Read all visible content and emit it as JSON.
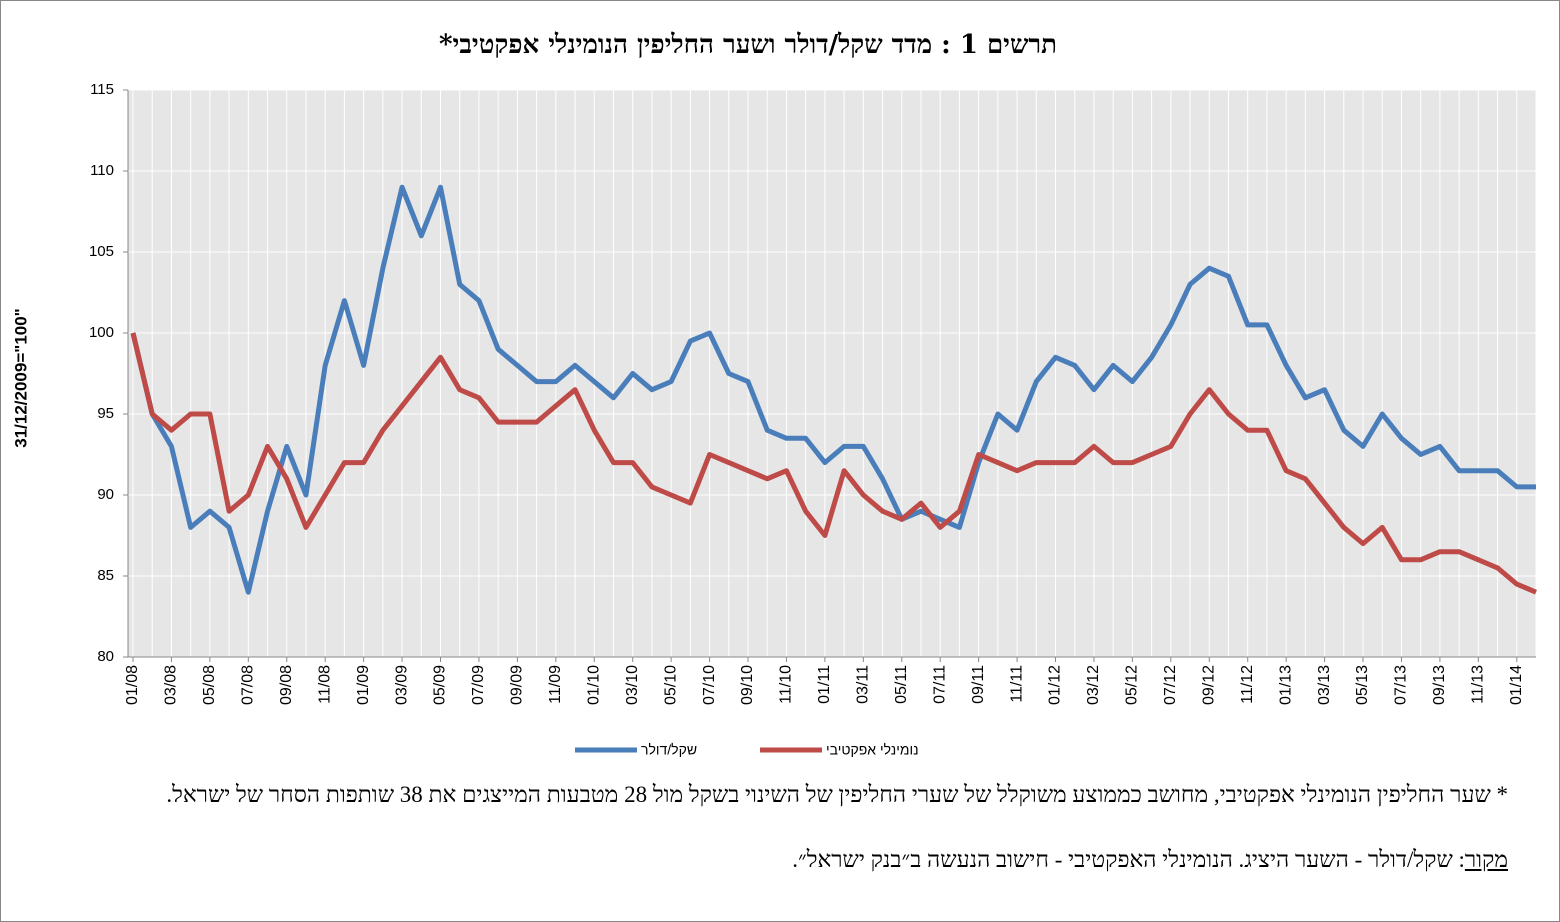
{
  "chart_data": {
    "type": "line",
    "title": "תרשים 1 : מדד שקל/דולר ושער החליפין הנומינלי אפקטיבי*",
    "y_label": "31/12/2009=\"100\"",
    "categories": [
      "01/08",
      null,
      "03/08",
      null,
      "05/08",
      null,
      "07/08",
      null,
      "09/08",
      null,
      "11/08",
      null,
      "01/09",
      null,
      "03/09",
      null,
      "05/09",
      null,
      "07/09",
      null,
      "09/09",
      null,
      "11/09",
      null,
      "01/10",
      null,
      "03/10",
      null,
      "05/10",
      null,
      "07/10",
      null,
      "09/10",
      null,
      "11/10",
      null,
      "01/11",
      null,
      "03/11",
      null,
      "05/11",
      null,
      "07/11",
      null,
      "09/11",
      null,
      "11/11",
      null,
      "01/12",
      null,
      "03/12",
      null,
      "05/12",
      null,
      "07/12",
      null,
      "09/12",
      null,
      "11/12",
      null,
      "01/13",
      null,
      "03/13",
      null,
      "05/13",
      null,
      "07/13",
      null,
      "09/13",
      null,
      "11/13",
      null,
      "01/14",
      null
    ],
    "series": [
      {
        "name": "שקל/דולר",
        "color": "#4a7ebb",
        "values": [
          100,
          95,
          93,
          88,
          89,
          88,
          84,
          89,
          93,
          90,
          98,
          102,
          98,
          104,
          109,
          106,
          109,
          103,
          102,
          99,
          98,
          97,
          97,
          98,
          97,
          96,
          97.5,
          96.5,
          97,
          99.5,
          100,
          97.5,
          97,
          94,
          93.5,
          93.5,
          92,
          93,
          93,
          91,
          88.5,
          89,
          88.5,
          88,
          92,
          95,
          94,
          97,
          98.5,
          98,
          96.5,
          98,
          97,
          98.5,
          100.5,
          103,
          104,
          103.5,
          100.5,
          100.5,
          98,
          96,
          96.5,
          94,
          93,
          95,
          93.5,
          92.5,
          93,
          91.5,
          91.5,
          91.5,
          90.5,
          90.5
        ]
      },
      {
        "name": "נומינלי אפקטיבי",
        "color": "#be4b48",
        "values": [
          100,
          95,
          94,
          95,
          95,
          89,
          90,
          93,
          91,
          88,
          90,
          92,
          92,
          94,
          95.5,
          97,
          98.5,
          96.5,
          96,
          94.5,
          94.5,
          94.5,
          95.5,
          96.5,
          94,
          92,
          92,
          90.5,
          90,
          89.5,
          92.5,
          92,
          91.5,
          91,
          91.5,
          89,
          87.5,
          91.5,
          90,
          89,
          88.5,
          89.5,
          88,
          89,
          92.5,
          92,
          91.5,
          92,
          92,
          92,
          93,
          92,
          92,
          92.5,
          93,
          95,
          96.5,
          95,
          94,
          94,
          91.5,
          91,
          89.5,
          88,
          87,
          88,
          86,
          86,
          86.5,
          86.5,
          86,
          85.5,
          84.5,
          84
        ]
      }
    ],
    "ylim": [
      80,
      115
    ],
    "yticks": [
      80,
      85,
      90,
      95,
      100,
      105,
      110,
      115
    ],
    "grid": true,
    "legend": "bottom",
    "footnote": "* שער החליפין הנומינלי אפקטיבי, מחושב כממוצע משוקלל של שערי החליפין של השינוי בשקל מול 28 מטבעות  המייצגים את 38 שותפות הסחר של ישראל.",
    "source_label": "מקור",
    "source_text": ": שקל/דולר - השער היציג. הנומינלי האפקטיבי - חישוב הנעשה ב״בנק ישראל״."
  }
}
